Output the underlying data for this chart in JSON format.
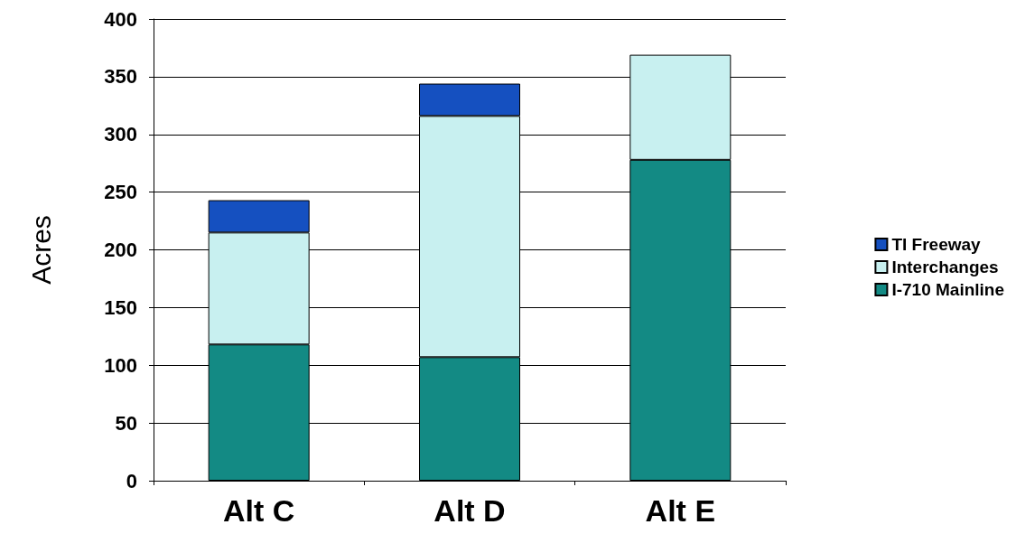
{
  "chart_data": {
    "type": "bar",
    "ylabel": "Acres",
    "categories": [
      "Alt C",
      "Alt D",
      "Alt E"
    ],
    "stacked": true,
    "series": [
      {
        "name": "I-710 Mainline",
        "color": "#138a84",
        "values": [
          118,
          107,
          278
        ]
      },
      {
        "name": "Interchanges",
        "color": "#c8f0f0",
        "values": [
          97,
          209,
          91
        ]
      },
      {
        "name": "TI Freeway",
        "color": "#1550c0",
        "values": [
          28,
          28,
          null
        ]
      }
    ],
    "ylim": [
      0,
      400
    ],
    "yticks": [
      0,
      50,
      100,
      150,
      200,
      250,
      300,
      350,
      400
    ],
    "grid": "y",
    "legend": "right"
  }
}
